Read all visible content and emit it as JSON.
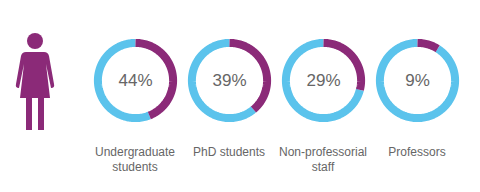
{
  "chart_data": {
    "type": "donut",
    "categories": [
      "Undergraduate students",
      "PhD students",
      "Non-professorial staff",
      "Professors"
    ],
    "values": [
      44,
      39,
      29,
      9
    ],
    "value_labels": [
      "44%",
      "39%",
      "29%",
      "9%"
    ],
    "data_labels": true,
    "colors": [
      "#8b2a78",
      "#5bc3ec"
    ]
  }
}
